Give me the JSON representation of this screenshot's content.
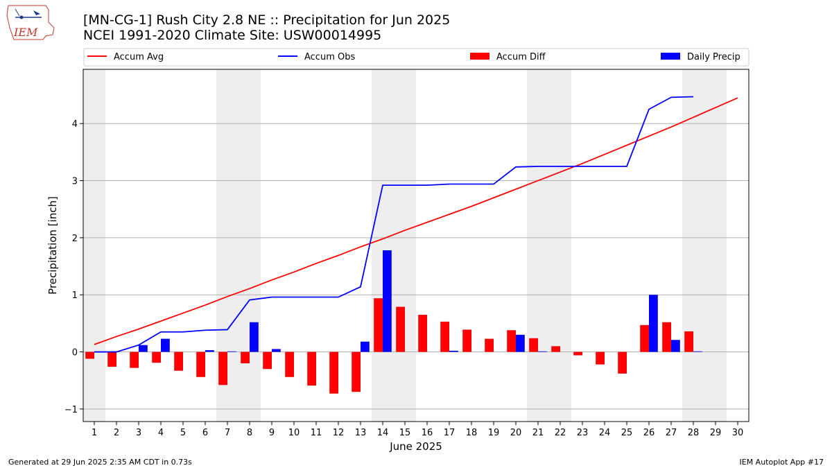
{
  "logo": {
    "text": "IEM"
  },
  "chart_data": {
    "type": "bar",
    "title": "[MN-CG-1] Rush City 2.8 NE :: Precipitation for Jun 2025",
    "subtitle": "NCEI 1991-2020 Climate Site: USW00014995",
    "xlabel": "June 2025",
    "ylabel": "Precipitation [inch]",
    "x": [
      1,
      2,
      3,
      4,
      5,
      6,
      7,
      8,
      9,
      10,
      11,
      12,
      13,
      14,
      15,
      16,
      17,
      18,
      19,
      20,
      21,
      22,
      23,
      24,
      25,
      26,
      27,
      28,
      29,
      30
    ],
    "xlim": [
      0.5,
      30.5
    ],
    "ylim": [
      -1.22,
      4.95
    ],
    "yticks": [
      -1,
      0,
      1,
      2,
      3,
      4
    ],
    "grid": "horizontal",
    "legend_position": "top",
    "weekend_shading": [
      [
        0.5,
        1.5
      ],
      [
        6.5,
        8.5
      ],
      [
        13.5,
        15.5
      ],
      [
        20.5,
        22.5
      ],
      [
        27.5,
        29.5
      ]
    ],
    "series": [
      {
        "name": "Accum Avg",
        "kind": "line",
        "color": "#ff0000",
        "values": [
          0.13,
          0.27,
          0.4,
          0.54,
          0.68,
          0.82,
          0.97,
          1.11,
          1.26,
          1.4,
          1.55,
          1.69,
          1.84,
          1.98,
          2.13,
          2.27,
          2.41,
          2.55,
          2.7,
          2.85,
          3.0,
          3.15,
          3.3,
          3.46,
          3.62,
          3.78,
          3.94,
          4.11,
          4.28,
          4.45
        ]
      },
      {
        "name": "Accum Obs",
        "kind": "line",
        "color": "#0000ff",
        "values": [
          0.0,
          0.0,
          0.12,
          0.35,
          0.35,
          0.38,
          0.39,
          0.91,
          0.96,
          0.96,
          0.96,
          0.96,
          1.14,
          2.92,
          2.92,
          2.92,
          2.94,
          2.94,
          2.94,
          3.24,
          3.25,
          3.25,
          3.25,
          3.25,
          3.25,
          4.25,
          4.46,
          4.47,
          null,
          null
        ]
      },
      {
        "name": "Accum Diff",
        "kind": "bar",
        "color": "#ff0000",
        "values": [
          -0.12,
          -0.26,
          -0.28,
          -0.19,
          -0.33,
          -0.44,
          -0.58,
          -0.2,
          -0.3,
          -0.44,
          -0.59,
          -0.73,
          -0.7,
          0.94,
          0.79,
          0.65,
          0.53,
          0.39,
          0.23,
          0.38,
          0.24,
          0.1,
          -0.06,
          -0.22,
          -0.38,
          0.47,
          0.52,
          0.36,
          null,
          null
        ]
      },
      {
        "name": "Daily Precip",
        "kind": "bar",
        "color": "#0000ff",
        "values": [
          0.0,
          0.0,
          0.12,
          0.23,
          0.0,
          0.03,
          0.01,
          0.52,
          0.05,
          0.0,
          0.0,
          0.0,
          0.18,
          1.78,
          0.0,
          0.0,
          0.02,
          0.0,
          0.0,
          0.3,
          0.01,
          0.0,
          0.0,
          0.0,
          0.0,
          1.0,
          0.21,
          0.01,
          null,
          null
        ]
      }
    ]
  },
  "footer": {
    "left": "Generated at 29 Jun 2025 2:35 AM CDT in 0.73s",
    "right": "IEM Autoplot App #17"
  }
}
